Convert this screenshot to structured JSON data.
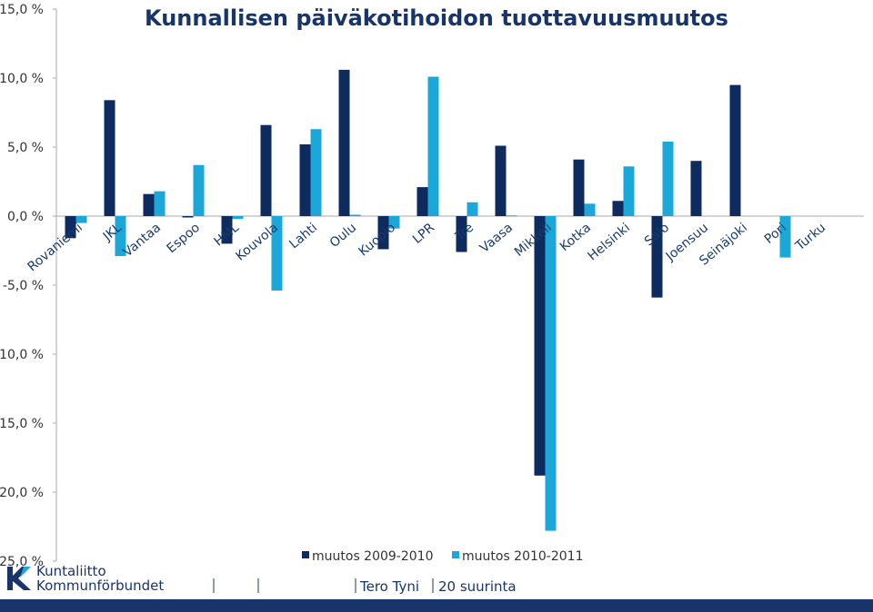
{
  "chart_data": {
    "type": "bar",
    "title": "Kunnallisen päiväkotihoidon tuottavuusmuutos",
    "categories": [
      "Rovaniemi",
      "JKL",
      "Vantaa",
      "Espoo",
      "HML",
      "Kouvola",
      "Lahti",
      "Oulu",
      "Kuopio",
      "LPR",
      "Tre",
      "Vaasa",
      "Mikkeli",
      "Kotka",
      "Helsinki",
      "Salo",
      "Joensuu",
      "Seinäjoki",
      "Pori",
      "Turku"
    ],
    "series": [
      {
        "name": "muutos 2009-2010",
        "color": "#0d2b5e",
        "values": [
          -1.6,
          8.4,
          1.6,
          -0.1,
          -2.0,
          6.6,
          5.2,
          10.6,
          -2.4,
          2.1,
          -2.6,
          5.1,
          -18.8,
          4.1,
          1.1,
          -5.9,
          4.0,
          9.5,
          null,
          null
        ]
      },
      {
        "name": "muutos 2010-2011",
        "color": "#1ba8d8",
        "values": [
          -0.5,
          -2.9,
          1.8,
          3.7,
          -0.2,
          -5.4,
          6.3,
          0.1,
          -0.9,
          10.1,
          1.0,
          0.05,
          -22.8,
          0.9,
          3.6,
          5.4,
          null,
          null,
          -3.0,
          null
        ]
      }
    ],
    "ylim": [
      -25,
      15
    ],
    "yticks": [
      {
        "value": 15,
        "label": "15,0 %"
      },
      {
        "value": 10,
        "label": "10,0 %"
      },
      {
        "value": 5,
        "label": "5,0 %"
      },
      {
        "value": 0,
        "label": "0,0 %"
      },
      {
        "value": -5,
        "label": "-5,0 %"
      },
      {
        "value": -10,
        "label": "10,0 %"
      },
      {
        "value": -15,
        "label": "15,0 %"
      },
      {
        "value": -20,
        "label": "20,0 %"
      },
      {
        "value": -25,
        "label": "25,0 %"
      }
    ],
    "grid": false,
    "legend": "bottom"
  },
  "footer": {
    "logo_line1": "Kuntaliitto",
    "logo_line2": "Kommunförbundet",
    "author": "Tero Tyni",
    "topic": "20 suurinta"
  }
}
